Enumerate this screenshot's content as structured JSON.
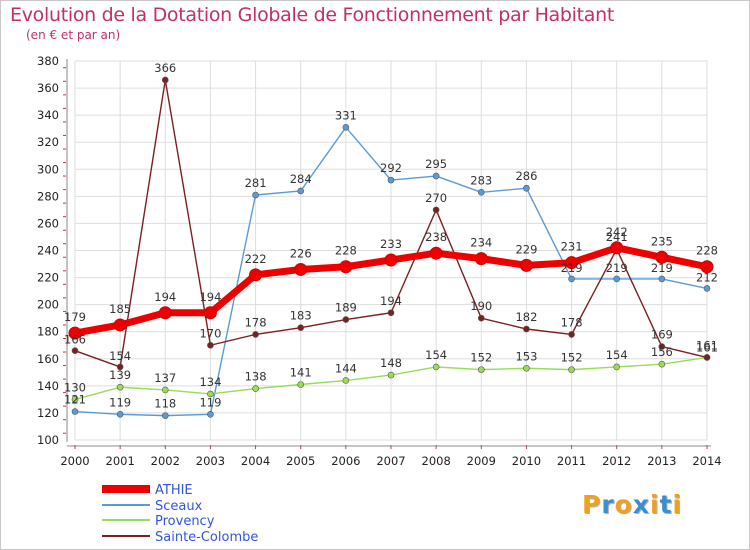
{
  "chart_data": {
    "type": "line",
    "title": "Evolution de la Dotation Globale de Fonctionnement par Habitant",
    "subtitle": "(en € et par an)",
    "x": [
      "2000",
      "2001",
      "2002",
      "2003",
      "2004",
      "2005",
      "2006",
      "2007",
      "2008",
      "2009",
      "2010",
      "2011",
      "2012",
      "2013",
      "2014"
    ],
    "ylim": [
      100,
      380
    ],
    "yticks": [
      100,
      120,
      140,
      160,
      180,
      200,
      220,
      240,
      260,
      280,
      300,
      320,
      340,
      360,
      380
    ],
    "grid": true,
    "legend_position": "bottom-left",
    "series": [
      {
        "name": "Sceaux",
        "color": "#5b9bd5",
        "values": [
          121,
          119,
          118,
          119,
          281,
          284,
          331,
          292,
          295,
          283,
          286,
          219,
          219,
          219,
          212
        ]
      },
      {
        "name": "Provency",
        "color": "#99dd55",
        "values": [
          130,
          139,
          137,
          134,
          138,
          141,
          144,
          148,
          154,
          152,
          153,
          152,
          154,
          156,
          161
        ]
      },
      {
        "name": "Sainte-Colombe",
        "color": "#7a2020",
        "values": [
          166,
          154,
          366,
          170,
          178,
          183,
          189,
          194,
          270,
          190,
          182,
          178,
          241,
          169,
          161
        ]
      },
      {
        "name": "ATHIE",
        "color": "#ee0000",
        "values": [
          179,
          185,
          194,
          194,
          222,
          226,
          228,
          233,
          238,
          234,
          229,
          231,
          242,
          235,
          228
        ]
      }
    ],
    "legend": [
      "ATHIE",
      "Sceaux",
      "Provency",
      "Sainte-Colombe"
    ]
  },
  "logo": {
    "letters": [
      "P",
      "r",
      "o",
      "x",
      "i",
      "t",
      "i"
    ],
    "colors": [
      "#f0a020",
      "#3a8fd0",
      "#f0a020",
      "#3a8fd0",
      "#f0a020",
      "#3a8fd0",
      "#f0a020"
    ]
  }
}
